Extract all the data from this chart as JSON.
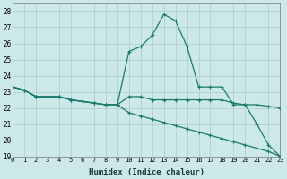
{
  "xlabel": "Humidex (Indice chaleur)",
  "xlim": [
    0,
    23
  ],
  "ylim": [
    19,
    28.5
  ],
  "yticks": [
    19,
    20,
    21,
    22,
    23,
    24,
    25,
    26,
    27,
    28
  ],
  "xticks": [
    0,
    1,
    2,
    3,
    4,
    5,
    6,
    7,
    8,
    9,
    10,
    11,
    12,
    13,
    14,
    15,
    16,
    17,
    18,
    19,
    20,
    21,
    22,
    23
  ],
  "bg_color": "#cce8e8",
  "grid_color": "#aacccc",
  "line_color": "#1a7a6e",
  "line1_x": [
    0,
    1,
    2,
    3,
    4,
    5,
    6,
    7,
    8,
    9,
    10,
    11,
    12,
    13,
    14,
    15,
    16,
    17,
    18,
    19,
    20,
    21,
    22,
    23
  ],
  "line1_y": [
    23.3,
    23.1,
    22.7,
    22.7,
    22.7,
    22.5,
    22.4,
    22.3,
    22.2,
    22.2,
    25.5,
    25.8,
    26.5,
    27.8,
    27.4,
    25.8,
    23.3,
    23.3,
    23.3,
    22.2,
    22.2,
    21.0,
    19.7,
    19.0
  ],
  "line2_x": [
    0,
    1,
    2,
    3,
    4,
    5,
    6,
    7,
    8,
    9,
    10,
    11,
    12,
    13,
    14,
    15,
    16,
    17,
    18,
    19,
    20,
    21,
    22,
    23
  ],
  "line2_y": [
    23.3,
    23.1,
    22.7,
    22.7,
    22.7,
    22.5,
    22.4,
    22.3,
    22.2,
    22.2,
    22.7,
    22.7,
    22.5,
    22.5,
    22.5,
    22.5,
    22.5,
    22.5,
    22.5,
    22.3,
    22.2,
    22.2,
    22.1,
    22.0
  ],
  "line3_x": [
    0,
    1,
    2,
    3,
    4,
    5,
    6,
    7,
    8,
    9,
    10,
    11,
    12,
    13,
    14,
    15,
    16,
    17,
    18,
    19,
    20,
    21,
    22,
    23
  ],
  "line3_y": [
    23.3,
    23.1,
    22.7,
    22.7,
    22.7,
    22.5,
    22.4,
    22.3,
    22.2,
    22.2,
    21.7,
    21.5,
    21.3,
    21.1,
    20.9,
    20.7,
    20.5,
    20.3,
    20.1,
    19.9,
    19.7,
    19.5,
    19.3,
    19.0
  ]
}
